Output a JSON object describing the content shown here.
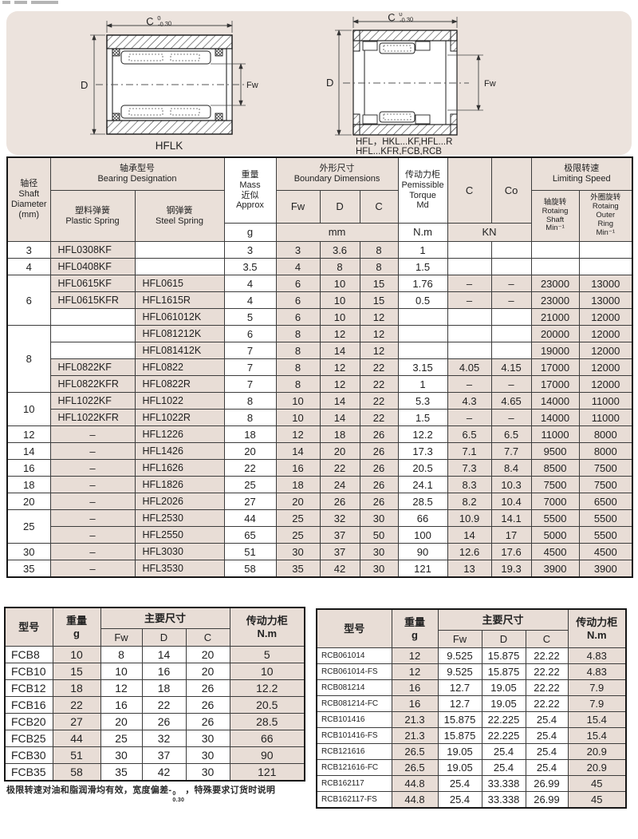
{
  "drawings": {
    "dim_c": "C",
    "tol_upper": "0",
    "tol_lower": "-0.30",
    "dim_d": "D",
    "dim_fw": "Fw",
    "left_caption": "HFLK",
    "right_caption_line1": "HFL，HKL...KF,HFL...R",
    "right_caption_line2": "HFL...KFR,FCB,RCB",
    "panel_bg": "#ece3dd"
  },
  "colors": {
    "cell_tint": "#e8ddd6",
    "header_tint": "#eae0d9",
    "border": "#3c3c3c"
  },
  "main_table": {
    "header": {
      "shaft": "轴径\nShaft\nDiameter\n(mm)",
      "designation": "轴承型号\nBearing Designation",
      "plastic": "塑料弹簧\nPlastic Spring",
      "steel": "钢弹簧\nSteel Spring",
      "mass": "重量\nMass\n近似\nApprox",
      "boundary": "外形尺寸\nBoundary Dimensions",
      "fw": "Fw",
      "d": "D",
      "c": "C",
      "torque": "传动力柜\nPemissible\nTorque\nMd",
      "c_dyn": "C",
      "co_stat": "Co",
      "speed": "极限转速\nLimiting Speed",
      "speed_shaft": "轴旋转\nRotaing\nShaft\nMin⁻¹",
      "speed_outer": "外圈旋转\nRotaing\nOuter\nRing\nMin⁻¹",
      "unit_g": "g",
      "unit_mm": "mm",
      "unit_nm": "N.m",
      "unit_kn": "KN"
    },
    "rows": [
      {
        "shaft": "3",
        "span": 1,
        "plastic": "HFL0308KF",
        "steel": "",
        "mass": "3",
        "fw": "3",
        "d": "3.6",
        "c": "8",
        "md": "1",
        "ckn": "",
        "co": "",
        "ns": "",
        "no": ""
      },
      {
        "shaft": "4",
        "span": 1,
        "plastic": "HFL0408KF",
        "steel": "",
        "mass": "3.5",
        "fw": "4",
        "d": "8",
        "c": "8",
        "md": "1.5",
        "ckn": "",
        "co": "",
        "ns": "",
        "no": ""
      },
      {
        "shaft": "6",
        "span": 3,
        "plastic": "HFL0615KF",
        "steel": "HFL0615",
        "mass": "4",
        "fw": "6",
        "d": "10",
        "c": "15",
        "md": "1.76",
        "ckn": "–",
        "co": "–",
        "ns": "23000",
        "no": "13000"
      },
      {
        "span": 0,
        "plastic": "HFL0615KFR",
        "steel": "HFL1615R",
        "mass": "4",
        "fw": "6",
        "d": "10",
        "c": "15",
        "md": "0.5",
        "ckn": "–",
        "co": "–",
        "ns": "23000",
        "no": "13000"
      },
      {
        "span": 0,
        "plastic": "",
        "steel": "HFL061012K",
        "mass": "5",
        "fw": "6",
        "d": "10",
        "c": "12",
        "md": "",
        "ckn": "",
        "co": "",
        "ns": "21000",
        "no": "12000"
      },
      {
        "shaft": "8",
        "span": 4,
        "plastic": "",
        "steel": "HFL081212K",
        "mass": "6",
        "fw": "8",
        "d": "12",
        "c": "12",
        "md": "",
        "ckn": "",
        "co": "",
        "ns": "20000",
        "no": "12000"
      },
      {
        "span": 0,
        "plastic": "",
        "steel": "HFL081412K",
        "mass": "7",
        "fw": "8",
        "d": "14",
        "c": "12",
        "md": "",
        "ckn": "",
        "co": "",
        "ns": "19000",
        "no": "12000"
      },
      {
        "span": 0,
        "plastic": "HFL0822KF",
        "steel": "HFL0822",
        "mass": "7",
        "fw": "8",
        "d": "12",
        "c": "22",
        "md": "3.15",
        "ckn": "4.05",
        "co": "4.15",
        "ns": "17000",
        "no": "12000"
      },
      {
        "span": 0,
        "plastic": "HFL0822KFR",
        "steel": "HFL0822R",
        "mass": "7",
        "fw": "8",
        "d": "12",
        "c": "22",
        "md": "1",
        "ckn": "–",
        "co": "–",
        "ns": "17000",
        "no": "12000"
      },
      {
        "shaft": "10",
        "span": 2,
        "plastic": "HFL1022KF",
        "steel": "HFL1022",
        "mass": "8",
        "fw": "10",
        "d": "14",
        "c": "22",
        "md": "5.3",
        "ckn": "4.3",
        "co": "4.65",
        "ns": "14000",
        "no": "11000"
      },
      {
        "span": 0,
        "plastic": "HFL1022KFR",
        "steel": "HFL1022R",
        "mass": "8",
        "fw": "10",
        "d": "14",
        "c": "22",
        "md": "1.5",
        "ckn": "–",
        "co": "–",
        "ns": "14000",
        "no": "11000"
      },
      {
        "shaft": "12",
        "span": 1,
        "plastic": "–",
        "steel": "HFL1226",
        "mass": "18",
        "fw": "12",
        "d": "18",
        "c": "26",
        "md": "12.2",
        "ckn": "6.5",
        "co": "6.5",
        "ns": "11000",
        "no": "8000"
      },
      {
        "shaft": "14",
        "span": 1,
        "plastic": "–",
        "steel": "HFL1426",
        "mass": "20",
        "fw": "14",
        "d": "20",
        "c": "26",
        "md": "17.3",
        "ckn": "7.1",
        "co": "7.7",
        "ns": "9500",
        "no": "8000"
      },
      {
        "shaft": "16",
        "span": 1,
        "plastic": "–",
        "steel": "HFL1626",
        "mass": "22",
        "fw": "16",
        "d": "22",
        "c": "26",
        "md": "20.5",
        "ckn": "7.3",
        "co": "8.4",
        "ns": "8500",
        "no": "7500"
      },
      {
        "shaft": "18",
        "span": 1,
        "plastic": "–",
        "steel": "HFL1826",
        "mass": "25",
        "fw": "18",
        "d": "24",
        "c": "26",
        "md": "24.1",
        "ckn": "8.3",
        "co": "10.3",
        "ns": "7500",
        "no": "7500"
      },
      {
        "shaft": "20",
        "span": 1,
        "plastic": "–",
        "steel": "HFL2026",
        "mass": "27",
        "fw": "20",
        "d": "26",
        "c": "26",
        "md": "28.5",
        "ckn": "8.2",
        "co": "10.4",
        "ns": "7000",
        "no": "6500"
      },
      {
        "shaft": "25",
        "span": 2,
        "plastic": "–",
        "steel": "HFL2530",
        "mass": "44",
        "fw": "25",
        "d": "32",
        "c": "30",
        "md": "66",
        "ckn": "10.9",
        "co": "14.1",
        "ns": "5500",
        "no": "5500"
      },
      {
        "span": 0,
        "plastic": "–",
        "steel": "HFL2550",
        "mass": "65",
        "fw": "25",
        "d": "37",
        "c": "50",
        "md": "100",
        "ckn": "14",
        "co": "17",
        "ns": "5000",
        "no": "5500"
      },
      {
        "shaft": "30",
        "span": 1,
        "plastic": "–",
        "steel": "HFL3030",
        "mass": "51",
        "fw": "30",
        "d": "37",
        "c": "30",
        "md": "90",
        "ckn": "12.6",
        "co": "17.6",
        "ns": "4500",
        "no": "4500"
      },
      {
        "shaft": "35",
        "span": 1,
        "plastic": "–",
        "steel": "HFL3530",
        "mass": "58",
        "fw": "35",
        "d": "42",
        "c": "30",
        "md": "121",
        "ckn": "13",
        "co": "19.3",
        "ns": "3900",
        "no": "3900"
      }
    ]
  },
  "fcb_table": {
    "header": {
      "model": "型号",
      "mass": "重量\ng",
      "dims": "主要尺寸",
      "fw": "Fw",
      "d": "D",
      "c": "C",
      "torque": "传动力柜\nN.m"
    },
    "rows": [
      [
        "FCB8",
        "10",
        "8",
        "14",
        "20",
        "5"
      ],
      [
        "FCB10",
        "15",
        "10",
        "16",
        "20",
        "10"
      ],
      [
        "FCB12",
        "18",
        "12",
        "18",
        "26",
        "12.2"
      ],
      [
        "FCB16",
        "22",
        "16",
        "22",
        "26",
        "20.5"
      ],
      [
        "FCB20",
        "27",
        "20",
        "26",
        "26",
        "28.5"
      ],
      [
        "FCB25",
        "44",
        "25",
        "32",
        "30",
        "66"
      ],
      [
        "FCB30",
        "51",
        "30",
        "37",
        "30",
        "90"
      ],
      [
        "FCB35",
        "58",
        "35",
        "42",
        "30",
        "121"
      ]
    ]
  },
  "rcb_table": {
    "header": {
      "model": "型号",
      "mass": "重量\ng",
      "dims": "主要尺寸",
      "fw": "Fw",
      "d": "D",
      "c": "C",
      "torque": "传动力柜\nN.m"
    },
    "rows": [
      [
        "RCB061014",
        "12",
        "9.525",
        "15.875",
        "22.22",
        "4.83"
      ],
      [
        "RCB061014-FS",
        "12",
        "9.525",
        "15.875",
        "22.22",
        "4.83"
      ],
      [
        "RCB081214",
        "16",
        "12.7",
        "19.05",
        "22.22",
        "7.9"
      ],
      [
        "RCB081214-FC",
        "16",
        "12.7",
        "19.05",
        "22.22",
        "7.9"
      ],
      [
        "RCB101416",
        "21.3",
        "15.875",
        "22.225",
        "25.4",
        "15.4"
      ],
      [
        "RCB101416-FS",
        "21.3",
        "15.875",
        "22.225",
        "25.4",
        "15.4"
      ],
      [
        "RCB121616",
        "26.5",
        "19.05",
        "25.4",
        "25.4",
        "20.9"
      ],
      [
        "RCB121616-FC",
        "26.5",
        "19.05",
        "25.4",
        "25.4",
        "20.9"
      ],
      [
        "RCB162117",
        "44.8",
        "25.4",
        "33.338",
        "26.99",
        "45"
      ],
      [
        "RCB162117-FS",
        "44.8",
        "25.4",
        "33.338",
        "26.99",
        "45"
      ]
    ]
  },
  "footnote": {
    "prefix": "极限转速对油和脂润滑均有效，宽度偏差-",
    "tol_upper": "0",
    "tol_lower": "0.30",
    "suffix": "，特殊要求订货时说明"
  }
}
